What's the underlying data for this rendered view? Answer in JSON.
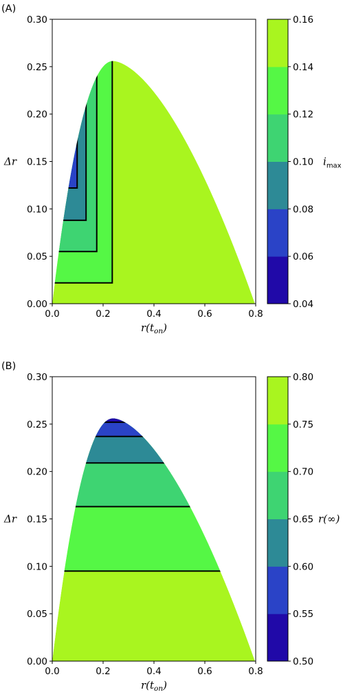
{
  "chart_data": [
    {
      "type": "contour",
      "panel_label": "(A)",
      "xlabel": {
        "main": "r(t",
        "sub": "on",
        "close": ")"
      },
      "ylabel": "Δr",
      "xlim": [
        0.0,
        0.8
      ],
      "ylim": [
        0.0,
        0.3
      ],
      "xticks": [
        "0.0",
        "0.2",
        "0.4",
        "0.6",
        "0.8"
      ],
      "yticks": [
        "0.00",
        "0.05",
        "0.10",
        "0.15",
        "0.20",
        "0.25",
        "0.30"
      ],
      "region": {
        "shape": "parabolic-cap",
        "x_left": 0.0,
        "x_right": 0.797,
        "peak_x": 0.24,
        "peak_y": 0.256
      },
      "colorbar": {
        "label_main": "i",
        "label_sub": "max",
        "ticks": [
          "0.04",
          "0.06",
          "0.08",
          "0.10",
          "0.12",
          "0.14",
          "0.16"
        ],
        "levels": [
          0.04,
          0.06,
          0.08,
          0.1,
          0.12,
          0.14,
          0.16
        ],
        "colors": [
          "#2009a8",
          "#2a43c7",
          "#2d8a96",
          "#3ed472",
          "#55f745",
          "#a9f51f"
        ]
      },
      "contour_lines": [
        {
          "level": 0.14,
          "corner_x": 0.236,
          "corner_y": 0.022
        },
        {
          "level": 0.12,
          "corner_x": 0.175,
          "corner_y": 0.055
        },
        {
          "level": 0.1,
          "corner_x": 0.133,
          "corner_y": 0.088
        },
        {
          "level": 0.08,
          "corner_x": 0.098,
          "corner_y": 0.122
        },
        {
          "level": 0.06,
          "corner_x": 0.073,
          "corner_y": 0.156
        }
      ]
    },
    {
      "type": "contour",
      "panel_label": "(B)",
      "xlabel": {
        "main": "r(t",
        "sub": "on",
        "close": ")"
      },
      "ylabel": "Δr",
      "xlim": [
        0.0,
        0.8
      ],
      "ylim": [
        0.0,
        0.3
      ],
      "xticks": [
        "0.0",
        "0.2",
        "0.4",
        "0.6",
        "0.8"
      ],
      "yticks": [
        "0.00",
        "0.05",
        "0.10",
        "0.15",
        "0.20",
        "0.25",
        "0.30"
      ],
      "region": {
        "shape": "parabolic-cap",
        "x_left": 0.0,
        "x_right": 0.797,
        "peak_x": 0.24,
        "peak_y": 0.256
      },
      "colorbar": {
        "label_main": "r(∞)",
        "label_sub": "",
        "ticks": [
          "0.50",
          "0.55",
          "0.60",
          "0.65",
          "0.70",
          "0.75",
          "0.80"
        ],
        "levels": [
          0.5,
          0.55,
          0.6,
          0.65,
          0.7,
          0.75,
          0.8
        ],
        "colors": [
          "#2009a8",
          "#2a43c7",
          "#2d8a96",
          "#3ed472",
          "#55f745",
          "#a9f51f"
        ]
      },
      "contour_lines": [
        {
          "level": 0.75,
          "y": 0.095
        },
        {
          "level": 0.7,
          "y": 0.163
        },
        {
          "level": 0.65,
          "y": 0.209
        },
        {
          "level": 0.6,
          "y": 0.237
        },
        {
          "level": 0.55,
          "y": 0.252
        }
      ]
    }
  ]
}
